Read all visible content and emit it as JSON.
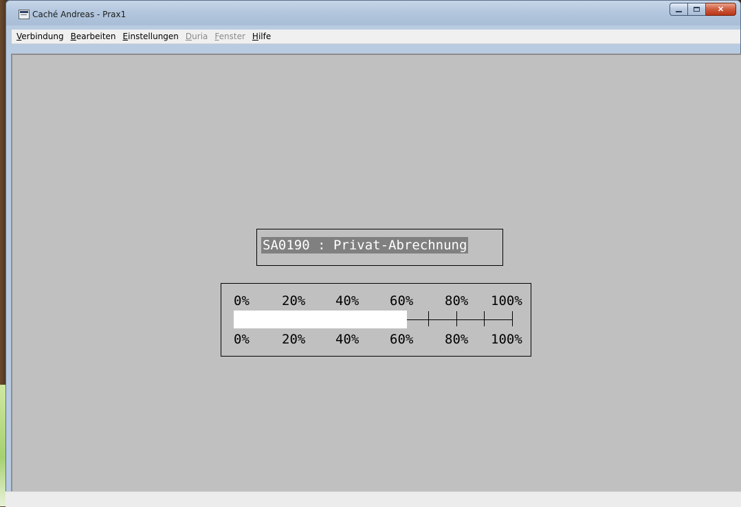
{
  "window": {
    "title": "Caché Andreas - Prax1",
    "buttons": {
      "minimize": "minimize",
      "maximize": "maximize",
      "close": "close"
    }
  },
  "menu": [
    {
      "label": "Verbindung",
      "key": "V",
      "disabled": false
    },
    {
      "label": "Bearbeiten",
      "key": "B",
      "disabled": false
    },
    {
      "label": "Einstellungen",
      "key": "E",
      "disabled": false
    },
    {
      "label": "Duria",
      "key": "D",
      "disabled": true
    },
    {
      "label": "Fenster",
      "key": "F",
      "disabled": true
    },
    {
      "label": "Hilfe",
      "key": "H",
      "disabled": false
    }
  ],
  "terminal": {
    "heading": "SA0190 : Privat-Abrechnung",
    "progress": {
      "percent_complete": 62,
      "top_labels": [
        "0%",
        "20%",
        "40%",
        "60%",
        "80%",
        "100%"
      ],
      "bottom_labels": [
        "0%",
        "20%",
        "40%",
        "60%",
        "80%",
        "100%"
      ]
    }
  },
  "colors": {
    "client_bg": "#c0c0c0",
    "heading_bg": "#808080",
    "bar_fill": "#ffffff"
  }
}
